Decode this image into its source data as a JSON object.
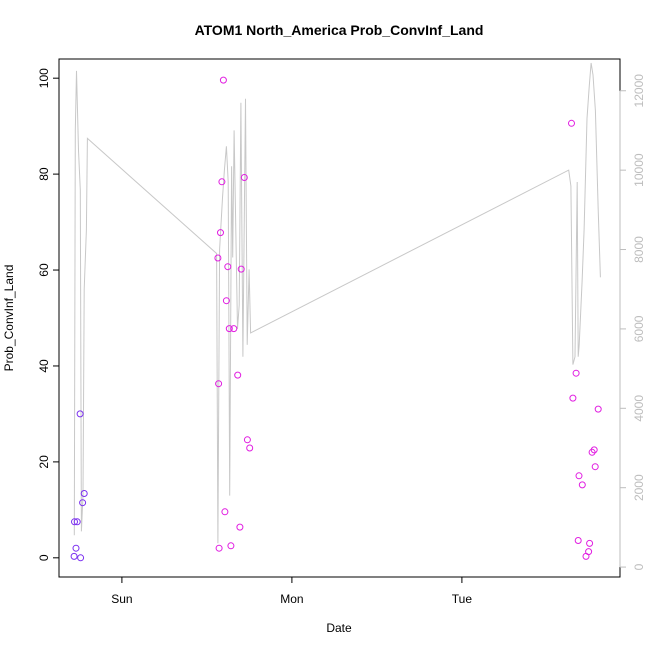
{
  "chart_data": {
    "type": "scatter",
    "title": "ATOM1 North_America Prob_ConvInf_Land",
    "xlabel": "Date",
    "ylabel": "Prob_ConvInf_Land",
    "x_ticks": [
      "Sun",
      "Mon",
      "Tue"
    ],
    "x_tick_positions": [
      1,
      2,
      3
    ],
    "xlim": [
      0.63,
      3.93
    ],
    "ylim": [
      -4,
      104
    ],
    "y_ticks": [
      0,
      20,
      40,
      60,
      80,
      100
    ],
    "y_ticks_labels": [
      "0",
      "20",
      "40",
      "60",
      "80",
      "100"
    ],
    "y2lim": [
      -250,
      12800
    ],
    "y2_ticks": [
      0,
      2000,
      4000,
      6000,
      8000,
      10000,
      12000
    ],
    "y2_ticks_labels": [
      "0",
      "2000",
      "4000",
      "6000",
      "8000",
      "10000",
      "12000"
    ],
    "colors": {
      "points_early": "#7b2ff0",
      "points_late": "#e11ee1",
      "line": "#c8c8c8",
      "right_axis": "#bdbdbd"
    },
    "points": [
      {
        "x": 0.719,
        "y": 0.3,
        "group": "early"
      },
      {
        "x": 0.721,
        "y": 7.5,
        "group": "early"
      },
      {
        "x": 0.73,
        "y": 2.0,
        "group": "early"
      },
      {
        "x": 0.737,
        "y": 7.5,
        "group": "early"
      },
      {
        "x": 0.754,
        "y": 30.0,
        "group": "early"
      },
      {
        "x": 0.757,
        "y": 0.0,
        "group": "early"
      },
      {
        "x": 0.769,
        "y": 11.5,
        "group": "early"
      },
      {
        "x": 0.778,
        "y": 13.4,
        "group": "early"
      },
      {
        "x": 1.565,
        "y": 62.5,
        "group": "late"
      },
      {
        "x": 1.569,
        "y": 36.3,
        "group": "late"
      },
      {
        "x": 1.572,
        "y": 2.0,
        "group": "late"
      },
      {
        "x": 1.58,
        "y": 67.8,
        "group": "late"
      },
      {
        "x": 1.588,
        "y": 78.4,
        "group": "late"
      },
      {
        "x": 1.597,
        "y": 99.6,
        "group": "late"
      },
      {
        "x": 1.606,
        "y": 9.6,
        "group": "late"
      },
      {
        "x": 1.615,
        "y": 53.6,
        "group": "late"
      },
      {
        "x": 1.623,
        "y": 60.7,
        "group": "late"
      },
      {
        "x": 1.632,
        "y": 47.8,
        "group": "late"
      },
      {
        "x": 1.641,
        "y": 2.5,
        "group": "late"
      },
      {
        "x": 1.658,
        "y": 47.8,
        "group": "late"
      },
      {
        "x": 1.681,
        "y": 38.1,
        "group": "late"
      },
      {
        "x": 1.694,
        "y": 6.4,
        "group": "late"
      },
      {
        "x": 1.702,
        "y": 60.2,
        "group": "late"
      },
      {
        "x": 1.72,
        "y": 79.3,
        "group": "late"
      },
      {
        "x": 1.738,
        "y": 24.6,
        "group": "late"
      },
      {
        "x": 1.752,
        "y": 22.9,
        "group": "late"
      },
      {
        "x": 3.645,
        "y": 90.6,
        "group": "late"
      },
      {
        "x": 3.653,
        "y": 33.3,
        "group": "late"
      },
      {
        "x": 3.672,
        "y": 38.5,
        "group": "late"
      },
      {
        "x": 3.684,
        "y": 3.6,
        "group": "late"
      },
      {
        "x": 3.689,
        "y": 17.1,
        "group": "late"
      },
      {
        "x": 3.708,
        "y": 15.2,
        "group": "late"
      },
      {
        "x": 3.73,
        "y": 0.3,
        "group": "late"
      },
      {
        "x": 3.745,
        "y": 1.3,
        "group": "late"
      },
      {
        "x": 3.751,
        "y": 3.0,
        "group": "late"
      },
      {
        "x": 3.766,
        "y": 22.0,
        "group": "late"
      },
      {
        "x": 3.778,
        "y": 22.5,
        "group": "late"
      },
      {
        "x": 3.784,
        "y": 19.0,
        "group": "late"
      },
      {
        "x": 3.802,
        "y": 31.0,
        "group": "late"
      }
    ],
    "line_series": {
      "axis": "right",
      "x": [
        0.72,
        0.726,
        0.733,
        0.745,
        0.755,
        0.762,
        0.771,
        0.778,
        0.791,
        0.797,
        1.557,
        1.565,
        1.575,
        1.592,
        1.603,
        1.615,
        1.625,
        1.634,
        1.645,
        1.652,
        1.66,
        1.68,
        1.69,
        1.7,
        1.712,
        1.727,
        1.737,
        1.748,
        1.757,
        3.628,
        3.641,
        3.653,
        3.665,
        3.678,
        3.684,
        3.69,
        3.707,
        3.719,
        3.736,
        3.749,
        3.76,
        3.771,
        3.785,
        3.802,
        3.815
      ],
      "y": [
        800,
        11000,
        12500,
        10500,
        9500,
        900,
        1800,
        7000,
        8500,
        10800,
        7900,
        600,
        8000,
        9300,
        10000,
        10600,
        9700,
        1800,
        10100,
        7800,
        11000,
        6000,
        6600,
        11700,
        5300,
        11800,
        5600,
        7500,
        5900,
        10000,
        9600,
        5100,
        5300,
        9700,
        5300,
        5600,
        7200,
        8500,
        11300,
        12100,
        12700,
        12400,
        11500,
        9000,
        7300
      ]
    }
  }
}
